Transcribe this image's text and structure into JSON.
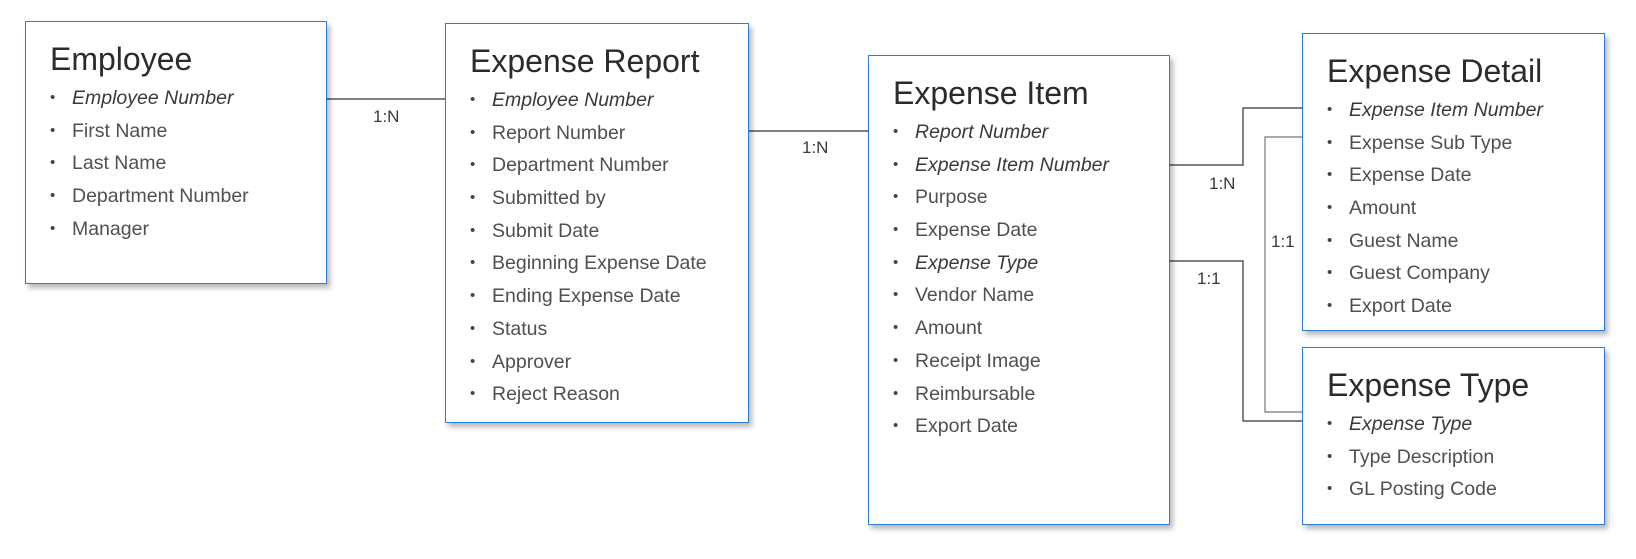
{
  "colors": {
    "border": "#2b7cd3",
    "line": "#333333"
  },
  "entities": [
    {
      "title": "Employee",
      "fields": [
        {
          "label": "Employee Number",
          "italic": true
        },
        {
          "label": "First Name",
          "italic": false
        },
        {
          "label": "Last Name",
          "italic": false
        },
        {
          "label": "Department Number",
          "italic": false
        },
        {
          "label": "Manager",
          "italic": false
        }
      ]
    },
    {
      "title": "Expense Report",
      "fields": [
        {
          "label": "Employee Number",
          "italic": true
        },
        {
          "label": "Report Number",
          "italic": false
        },
        {
          "label": "Department Number",
          "italic": false
        },
        {
          "label": "Submitted by",
          "italic": false
        },
        {
          "label": "Submit Date",
          "italic": false
        },
        {
          "label": "Beginning Expense Date",
          "italic": false
        },
        {
          "label": "Ending Expense Date",
          "italic": false
        },
        {
          "label": "Status",
          "italic": false
        },
        {
          "label": "Approver",
          "italic": false
        },
        {
          "label": "Reject Reason",
          "italic": false
        }
      ]
    },
    {
      "title": "Expense Item",
      "fields": [
        {
          "label": "Report Number",
          "italic": true
        },
        {
          "label": "Expense Item Number",
          "italic": true
        },
        {
          "label": "Purpose",
          "italic": false
        },
        {
          "label": "Expense Date",
          "italic": false
        },
        {
          "label": "Expense Type",
          "italic": true
        },
        {
          "label": "Vendor Name",
          "italic": false
        },
        {
          "label": "Amount",
          "italic": false
        },
        {
          "label": "Receipt Image",
          "italic": false
        },
        {
          "label": "Reimbursable",
          "italic": false
        },
        {
          "label": "Export Date",
          "italic": false
        }
      ]
    },
    {
      "title": "Expense Detail",
      "fields": [
        {
          "label": "Expense Item Number",
          "italic": true
        },
        {
          "label": "Expense Sub Type",
          "italic": false
        },
        {
          "label": "Expense Date",
          "italic": false
        },
        {
          "label": "Amount",
          "italic": false
        },
        {
          "label": "Guest Name",
          "italic": false
        },
        {
          "label": "Guest Company",
          "italic": false
        },
        {
          "label": "Export Date",
          "italic": false
        }
      ]
    },
    {
      "title": "Expense Type",
      "fields": [
        {
          "label": "Expense Type",
          "italic": true
        },
        {
          "label": "Type Description",
          "italic": false
        },
        {
          "label": "GL Posting Code",
          "italic": false
        }
      ]
    }
  ],
  "relationships": [
    {
      "from": "Employee.Employee Number",
      "to": "Expense Report.Employee Number",
      "cardinality": "1:N"
    },
    {
      "from": "Expense Report.Report Number",
      "to": "Expense Item.Report Number",
      "cardinality": "1:N"
    },
    {
      "from": "Expense Item.Expense Item Number",
      "to": "Expense Detail.Expense Item Number",
      "cardinality": "1:N"
    },
    {
      "from": "Expense Detail.Expense Sub Type",
      "to": "Expense Type.Expense Type",
      "cardinality": "1:1"
    },
    {
      "from": "Expense Item.Expense Type",
      "to": "Expense Type.Expense Type",
      "cardinality": "1:1"
    }
  ]
}
